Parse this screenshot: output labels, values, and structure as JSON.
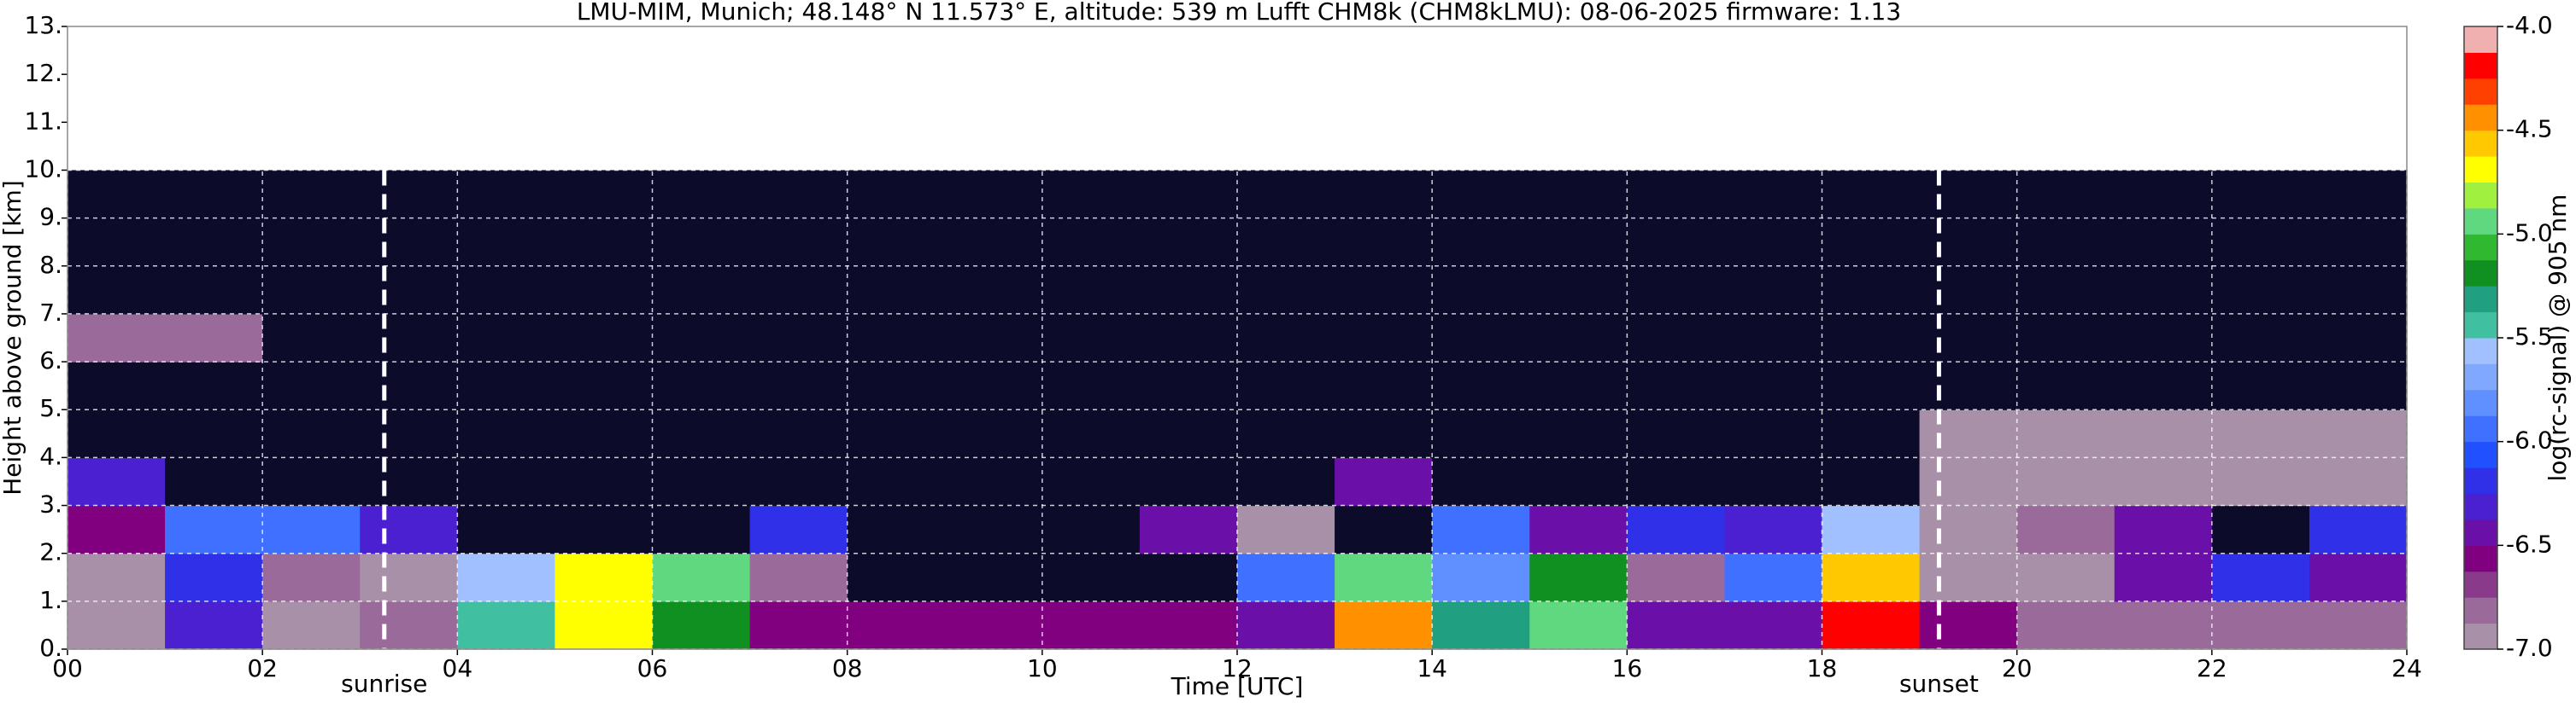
{
  "chart_data": {
    "type": "heatmap",
    "title": "LMU-MIM, Munich; 48.148° N 11.573° E, altitude: 539 m    Lufft CHM8k (CHM8kLMU): 08-06-2025    firmware: 1.13",
    "x_label": "Time [UTC]",
    "y_label": "Height above ground [km]",
    "colorbar_label": "log(rc-signal) @ 905 nm",
    "xlim": [
      0,
      24
    ],
    "xticks": [
      {
        "value": 0,
        "label": "00"
      },
      {
        "value": 2,
        "label": "02"
      },
      {
        "value": 4,
        "label": "04"
      },
      {
        "value": 6,
        "label": "06"
      },
      {
        "value": 8,
        "label": "08"
      },
      10,
      12,
      14,
      16,
      18,
      20,
      22,
      24
    ],
    "ylim": [
      0,
      13
    ],
    "yticks": [
      {
        "value": 0,
        "label": "0."
      },
      {
        "value": 1,
        "label": "1."
      },
      {
        "value": 2,
        "label": "2."
      },
      {
        "value": 3,
        "label": "3."
      },
      {
        "value": 4,
        "label": "4."
      },
      {
        "value": 5,
        "label": "5."
      },
      {
        "value": 6,
        "label": "6."
      },
      {
        "value": 7,
        "label": "7."
      },
      {
        "value": 8,
        "label": "8."
      },
      {
        "value": 9,
        "label": "9."
      },
      {
        "value": 10,
        "label": "10."
      },
      {
        "value": 11,
        "label": "11."
      },
      {
        "value": 12,
        "label": "12."
      },
      {
        "value": 13,
        "label": "13."
      }
    ],
    "clim": [
      -7,
      -4
    ],
    "cticks": [
      {
        "value": -7,
        "label": "-7.0"
      },
      {
        "value": -6.5,
        "label": "-6.5"
      },
      {
        "value": -6,
        "label": "-6.0"
      },
      {
        "value": -5.5,
        "label": "-5.5"
      },
      {
        "value": -5,
        "label": "-5.0"
      },
      {
        "value": -4.5,
        "label": "-4.5"
      },
      {
        "value": -4,
        "label": "-4.0"
      }
    ],
    "colors": [
      "#a890a8",
      "#9a6a9a",
      "#8a3a8a",
      "#800080",
      "#6a10a8",
      "#4a20d0",
      "#3030e8",
      "#2050ff",
      "#4070ff",
      "#6090ff",
      "#80a8ff",
      "#a0c0ff",
      "#40c0a0",
      "#20a080",
      "#109020",
      "#30b830",
      "#60d880",
      "#a0f040",
      "#ffff00",
      "#ffc800",
      "#ff9000",
      "#ff4000",
      "#ff0000",
      "#f0b0b0"
    ],
    "under_color": "#0c0c2a",
    "grid": true,
    "annotations": [
      {
        "x": 3.25,
        "label": "sunrise"
      },
      {
        "x": 19.2,
        "label": "sunset"
      }
    ],
    "x": [
      0.5,
      1.5,
      2.5,
      3.5,
      4.5,
      5.5,
      6.5,
      7.5,
      8.5,
      9.5,
      10.5,
      11.5,
      12.5,
      13.5,
      14.5,
      15.5,
      16.5,
      17.5,
      18.5,
      19.5,
      20.5,
      21.5,
      22.5,
      23.5
    ],
    "y": [
      0.5,
      1.5,
      2.5,
      3.5,
      4.5,
      5.5,
      6.5,
      7.5,
      8.5,
      9.5
    ],
    "values": [
      [
        -6.9,
        -6.3,
        -6.9,
        -6.8,
        -5.5,
        -4.7,
        -5.2,
        -6.6,
        -6.6,
        -6.6,
        -6.6,
        -6.6,
        -6.4,
        -4.4,
        -5.3,
        -5.0,
        -6.5,
        -6.4,
        -4.2,
        -6.6,
        -6.8,
        -6.8,
        -6.8,
        -6.8
      ],
      [
        -6.9,
        -6.2,
        -6.8,
        -6.9,
        -5.6,
        -4.7,
        -5.0,
        -6.8,
        -7.2,
        -7.2,
        -7.2,
        -7.2,
        -6.0,
        -5.0,
        -5.8,
        -5.2,
        -6.8,
        -6.0,
        -4.6,
        -7.0,
        -6.9,
        -6.5,
        -6.2,
        -6.4
      ],
      [
        -6.6,
        -6.0,
        -5.9,
        -6.3,
        -7.1,
        -7.1,
        -7.1,
        -6.2,
        -7.2,
        -7.2,
        -7.2,
        -6.5,
        -7.0,
        -7.1,
        -6.0,
        -6.5,
        -6.2,
        -6.3,
        -5.6,
        -6.9,
        -6.8,
        -6.5,
        -7.1,
        -6.2
      ],
      [
        -6.3,
        -7.2,
        -7.2,
        -7.2,
        -7.2,
        -7.2,
        -7.2,
        -7.2,
        -7.2,
        -7.2,
        -7.2,
        -7.2,
        -7.2,
        -6.4,
        -7.2,
        -7.2,
        -7.2,
        -7.2,
        -7.2,
        -6.9,
        -6.9,
        -6.9,
        -6.9,
        -6.9
      ],
      [
        -7.2,
        -7.2,
        -7.2,
        -7.2,
        -7.2,
        -7.2,
        -7.2,
        -7.2,
        -7.2,
        -7.2,
        -7.2,
        -7.2,
        -7.2,
        -7.2,
        -7.2,
        -7.2,
        -7.2,
        -7.2,
        -7.2,
        -7.0,
        -7.0,
        -7.0,
        -7.0,
        -7.0
      ],
      [
        -7.2,
        -7.2,
        -7.2,
        -7.2,
        -7.2,
        -7.2,
        -7.2,
        -7.2,
        -7.2,
        -7.2,
        -7.2,
        -7.2,
        -7.2,
        -7.2,
        -7.2,
        -7.2,
        -7.2,
        -7.2,
        -7.2,
        -7.2,
        -7.2,
        -7.2,
        -7.2,
        -7.2
      ],
      [
        -6.8,
        -6.8,
        -7.2,
        -7.2,
        -7.2,
        -7.2,
        -7.2,
        -7.2,
        -7.2,
        -7.2,
        -7.2,
        -7.2,
        -7.2,
        -7.2,
        -7.2,
        -7.2,
        -7.2,
        -7.2,
        -7.2,
        -7.2,
        -7.2,
        -7.2,
        -7.2,
        -7.2
      ],
      [
        -7.2,
        -7.2,
        -7.2,
        -7.2,
        -7.2,
        -7.2,
        -7.2,
        -7.2,
        -7.2,
        -7.2,
        -7.2,
        -7.2,
        -7.2,
        -7.2,
        -7.2,
        -7.2,
        -7.2,
        -7.2,
        -7.2,
        -7.2,
        -7.2,
        -7.2,
        -7.2,
        -7.2
      ],
      [
        -7.2,
        -7.2,
        -7.2,
        -7.2,
        -7.2,
        -7.2,
        -7.2,
        -7.2,
        -7.2,
        -7.2,
        -7.2,
        -7.2,
        -7.2,
        -7.2,
        -7.2,
        -7.2,
        -7.2,
        -7.2,
        -7.2,
        -7.2,
        -7.2,
        -7.2,
        -7.2,
        -7.2
      ],
      [
        -7.2,
        -7.2,
        -7.2,
        -7.2,
        -7.2,
        -7.2,
        -7.2,
        -7.2,
        -7.2,
        -7.2,
        -7.2,
        -7.2,
        -7.2,
        -7.2,
        -7.2,
        -7.2,
        -7.2,
        -7.2,
        -7.2,
        -7.2,
        -7.2,
        -7.2,
        -7.2,
        -7.2
      ]
    ]
  }
}
